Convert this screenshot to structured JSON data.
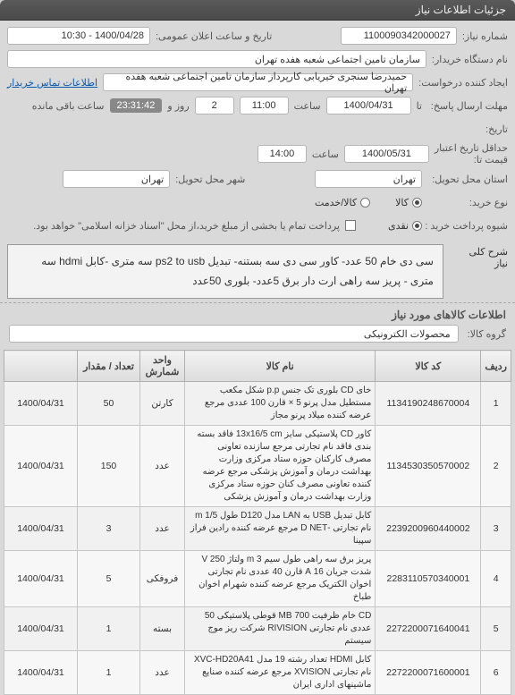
{
  "window": {
    "title": "جزئیات اطلاعات نیاز"
  },
  "meta": {
    "need_no_label": "شماره نیاز:",
    "need_no": "1100090342000027",
    "ann_label": "تاریخ و ساعت اعلان عمومی:",
    "ann_value": "1400/04/28 - 10:30",
    "buyer_label": "نام دستگاه خریدار:",
    "buyer_value": "سازمان تامین اجتماعی شعبه هفده تهران",
    "requester_label": "ایجاد کننده درخواست:",
    "requester_value": "حمیدرضا  سنجری خیریابی کارپرداز سازمان تامین اجتماعی شعبه هفده تهران",
    "contact_link": "اطلاعات تماس خریدار",
    "deadline_label": "مهلت ارسال پاسخ:",
    "deadline_to": "تا",
    "deadline_date": "1400/04/31",
    "deadline_time_label": "ساعت",
    "deadline_time": "11:00",
    "days_remain_val": "2",
    "days_remain_unit": "روز و",
    "countdown": "23:31:42",
    "remain_tail": "ساعت باقی مانده",
    "history_label": "تاریخ:",
    "credit_end_label": "حداقل تاریخ اعتبار",
    "credit_sub_label": "قیمت تا:",
    "credit_date": "1400/05/31",
    "credit_time_label": "ساعت",
    "credit_time": "14:00",
    "prov_label": "استان محل تحویل:",
    "prov_value": "تهران",
    "city_label": "شهر محل تحویل:",
    "city_value": "تهران",
    "buy_kind_label": "نوع خرید:",
    "radio_goods": "کالا",
    "radio_service": "کالا/خدمت",
    "pay_kind_label": "شیوه پرداخت خرید  :",
    "radio_cash": "نقدی",
    "check_note": "پرداخت تمام یا بخشی از مبلغ خرید،از محل \"اسناد خزانه اسلامی\" خواهد بود."
  },
  "summary": {
    "label": "شرح کلی نیاز",
    "text": "سی دی خام 50 عدد- کاور سی دی سه بستنه- تبدیل ps2 to usb سه متری -کابل hdmi سه متری - پریز سه راهی ارت دار برق 5عدد- بلوری 50عدد"
  },
  "group": {
    "section_title": "اطلاعات کالاهای مورد نیاز",
    "label": "گروه کالا:",
    "value": "محصولات الکترونیکی"
  },
  "tbl": {
    "h_idx": "ردیف",
    "h_code": "کد کالا",
    "h_name": "نام کالا",
    "h_unit": "واحد شمارش",
    "h_qty": "تعداد / مقدار",
    "h_date": "",
    "rows": [
      {
        "i": "1",
        "code": "1134190248670004",
        "name": "خای CD بلوری تک جنس p.p شکل مکعب مستطیل مدل پرنو 5 × قارن 100 عددی مرجع عرضه کننده میلاد پرنو مجاز",
        "unit": "کارتن",
        "qty": "50",
        "date": "1400/04/31"
      },
      {
        "i": "2",
        "code": "1134530350570002",
        "name": "کاور CD پلاستیکی سایز 13x16/5 cm فاقد بسته بندی فاقد نام تجارتی مرجع سازنده تعاونی مصرف کارکنان حوزه ستاد مرکزی وزارت بهداشت درمان و آموزش پزشکی مرجع عرضه کننده تعاونی مصرف کنان حوزه ستاد مرکزی وزارت بهداشت درمان و آموزش پزشکی",
        "unit": "عدد",
        "qty": "150",
        "date": "1400/04/31"
      },
      {
        "i": "3",
        "code": "2239200960440002",
        "name": "کابل تبدیل USB به LAN مدل D120 طول 1/5 m نام تجارتی -D NET مرجع عرضه کننده رادین فراز سپینا",
        "unit": "عدد",
        "qty": "3",
        "date": "1400/04/31"
      },
      {
        "i": "4",
        "code": "2283110570340001",
        "name": "پریز برق سه راهی طول سیم 3 m ولتاژ 250 V شدت جریان 16 A قارن 40 عددی نام تجارتی اخوان الکتریک مرجع عرضه کننده شهرام اخوان طباخ",
        "unit": "فروفکی",
        "qty": "5",
        "date": "1400/04/31"
      },
      {
        "i": "5",
        "code": "2272200071640041",
        "name": "CD خام ظرفیت MB 700 قوطی پلاستیکی 50 عددی نام تجارتی RIVISION شرکت ریز موج سیستم",
        "unit": "بسته",
        "qty": "1",
        "date": "1400/04/31"
      },
      {
        "i": "6",
        "code": "2272200071600001",
        "name": "کابل HDMI تعداد رشته 19 مدل XVC-HD20A41 نام تجارتی XVISION مرجع عرضه کننده صنایع ماشینهای اداری ایران",
        "unit": "عدد",
        "qty": "1",
        "date": "1400/04/31"
      }
    ]
  }
}
